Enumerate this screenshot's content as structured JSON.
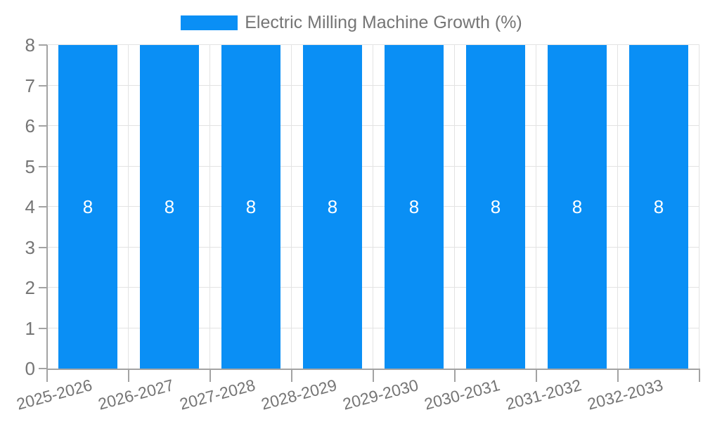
{
  "chart_data": {
    "type": "bar",
    "title": "Electric Milling Machine Growth (%)",
    "categories": [
      "2025-2026",
      "2026-2027",
      "2027-2028",
      "2028-2029",
      "2029-2030",
      "2030-2031",
      "2031-2032",
      "2032-2033"
    ],
    "values": [
      8,
      8,
      8,
      8,
      8,
      8,
      8,
      8
    ],
    "bar_value_labels": [
      "8",
      "8",
      "8",
      "8",
      "8",
      "8",
      "8",
      "8"
    ],
    "yticks": [
      0,
      1,
      2,
      3,
      4,
      5,
      6,
      7,
      8
    ],
    "ylim": [
      0,
      8
    ],
    "xlabel": "",
    "ylabel": "",
    "legend_position": "top",
    "grid": "on",
    "colors": {
      "bar": "#0a8ff5",
      "bar_value_text": "#ffffff",
      "axis_text": "#757575",
      "axis_line": "#a3a3a3",
      "gridline": "#e3e3e3",
      "background": "#ffffff"
    }
  }
}
